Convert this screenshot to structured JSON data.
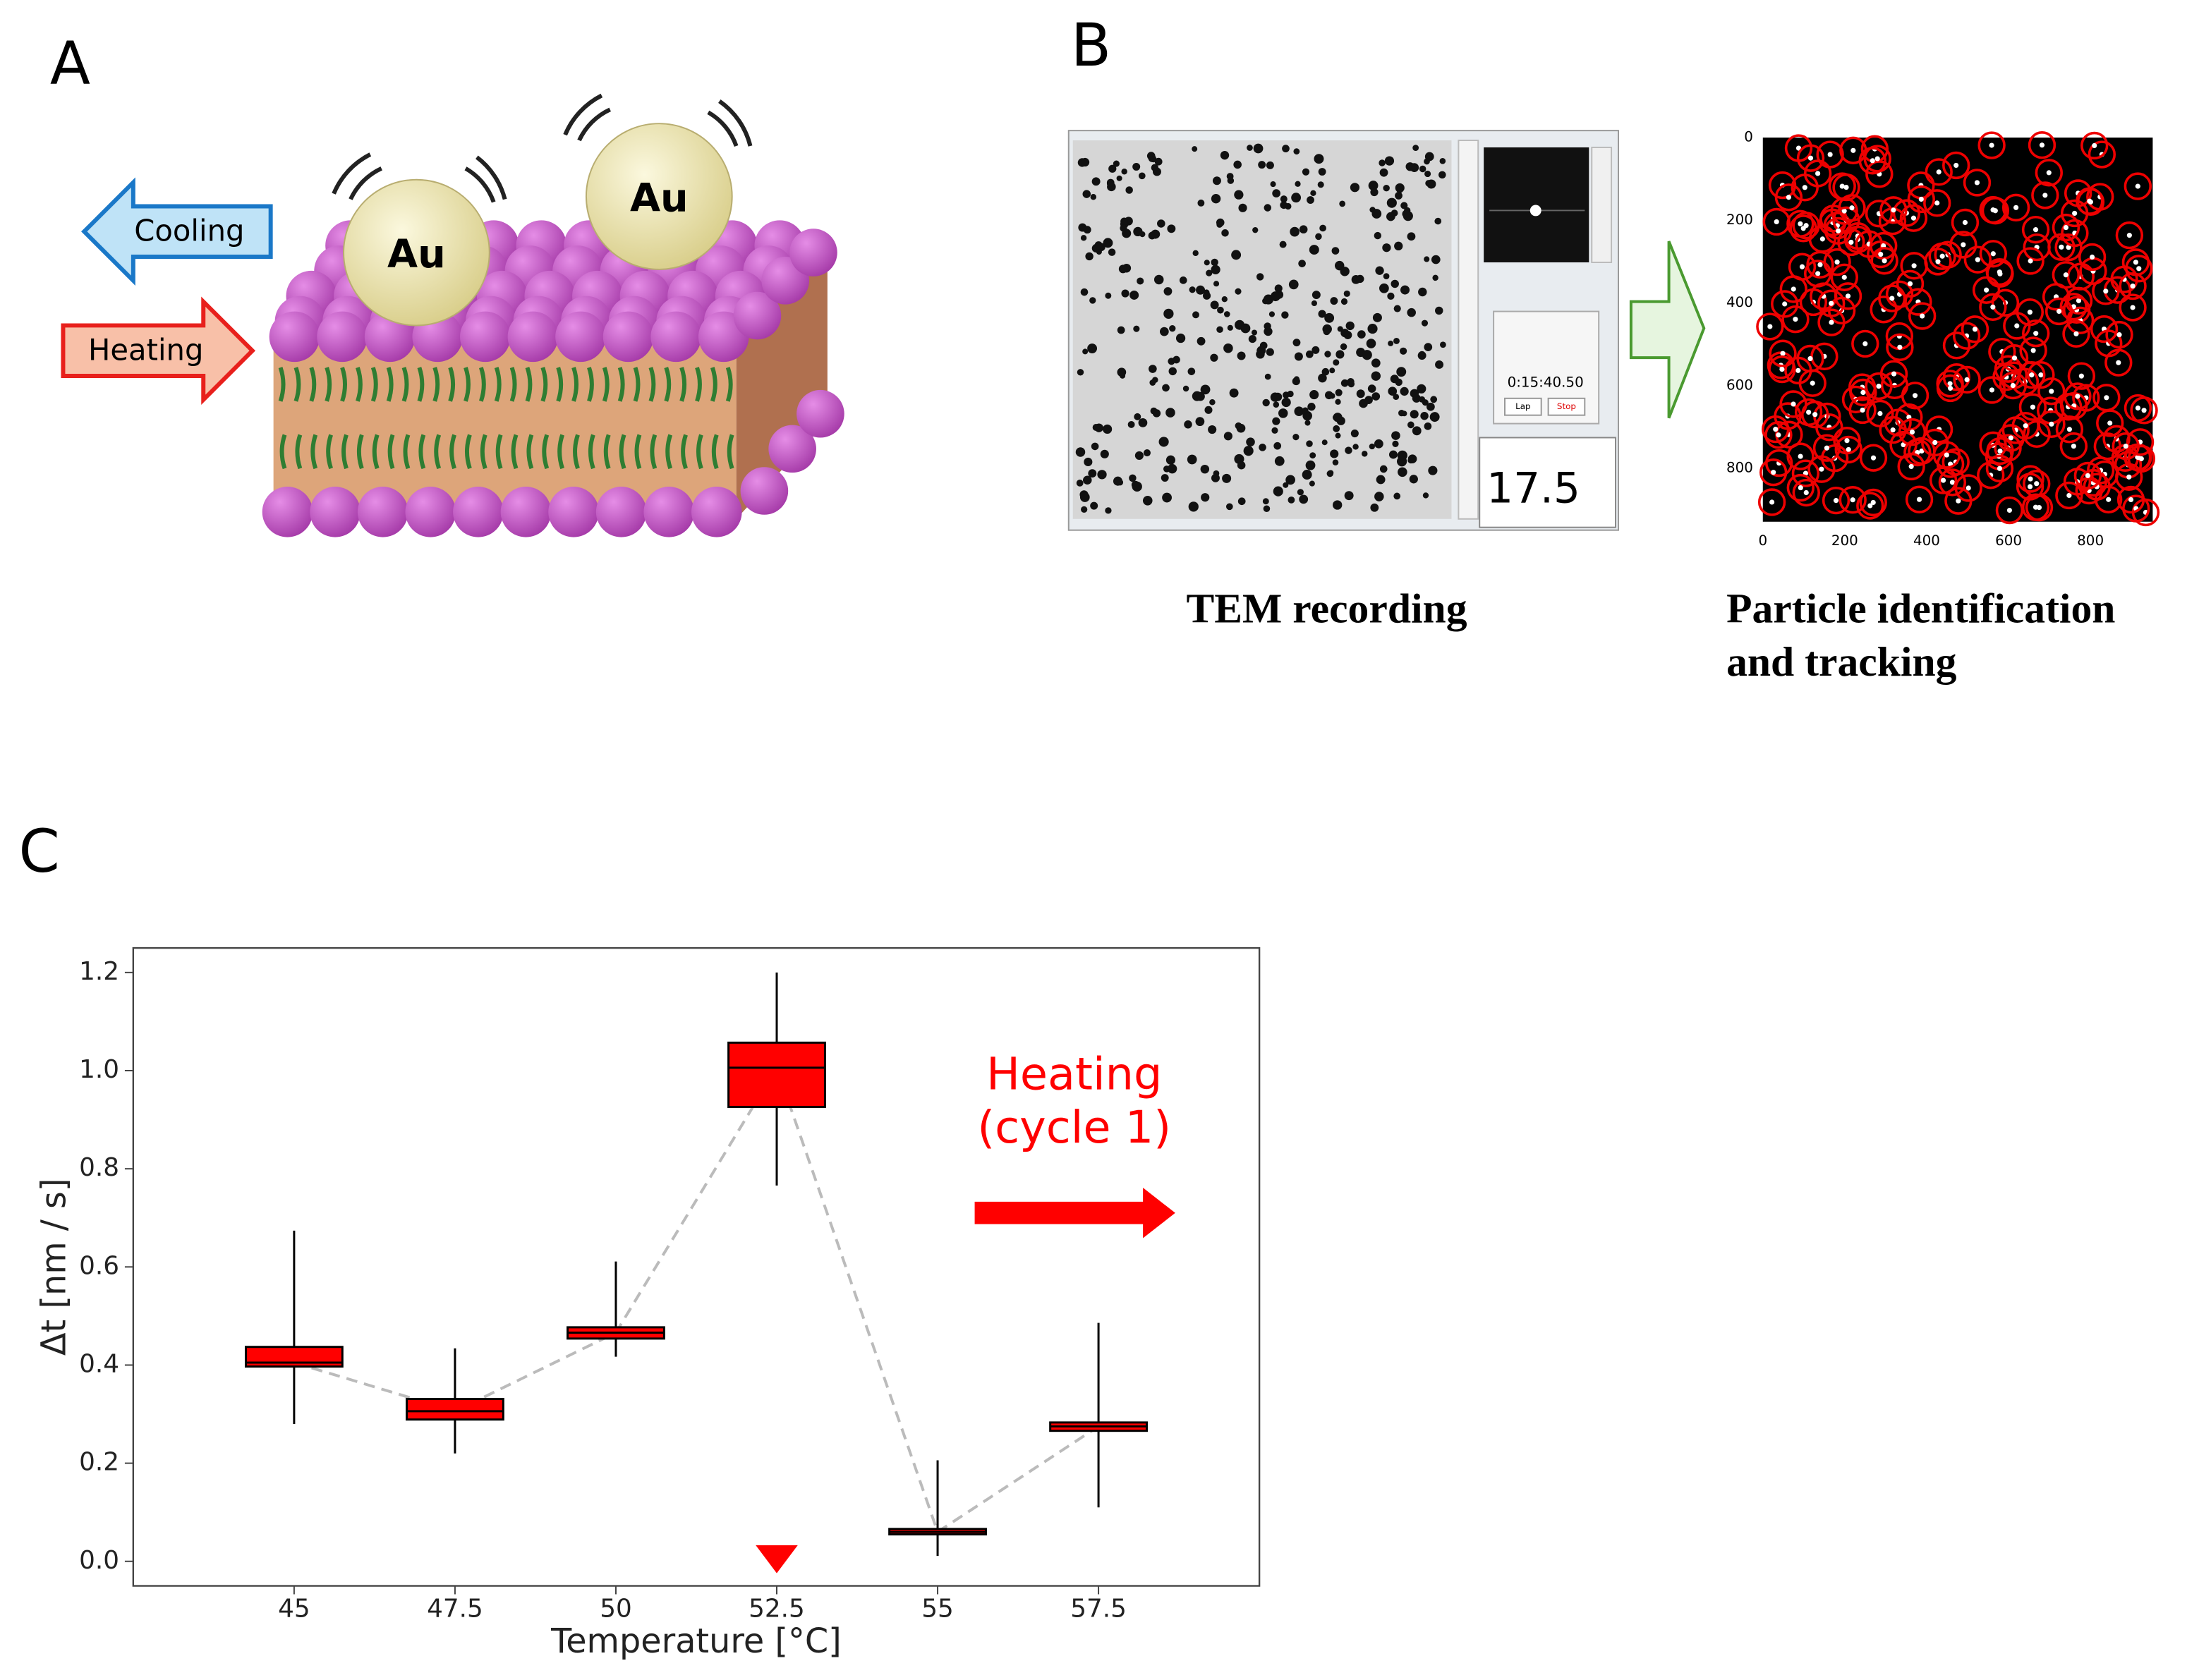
{
  "panel_a": {
    "label": "A",
    "cooling": "Cooling",
    "heating": "Heating",
    "particle_1": "Au",
    "particle_2": "Au"
  },
  "panel_b": {
    "label": "B",
    "recording_caption": "TEM recording",
    "tracking_caption_line_1": "Particle identification",
    "tracking_caption_line_2": "and tracking",
    "timer": "0:15:40.50",
    "lap_button": "Lap",
    "stop_button": "Stop",
    "temperature_display": "17.5",
    "tracking_plot": {
      "xticks": [
        0,
        200,
        400,
        600,
        800
      ],
      "yticks": [
        0,
        200,
        400,
        600,
        800
      ]
    }
  },
  "panel_c": {
    "label": "C"
  },
  "chart_data": {
    "type": "box",
    "xlabel": "Temperature [°C]",
    "ylabel": "Δt [nm / s]",
    "xlim": [
      42.5,
      60
    ],
    "xticks": [
      45,
      47.5,
      50,
      52.5,
      55,
      57.5
    ],
    "ylim": [
      -0.05,
      1.25
    ],
    "yticks": [
      {
        "value": 0,
        "label": "0.0"
      },
      {
        "value": 0.2,
        "label": "0.2"
      },
      {
        "value": 0.4,
        "label": "0.4"
      },
      {
        "value": 0.6,
        "label": "0.6"
      },
      {
        "value": 0.8,
        "label": "0.8"
      },
      {
        "value": 1.0,
        "label": "1.0"
      },
      {
        "value": 1.2,
        "label": "1.2"
      }
    ],
    "color": "#ff0000",
    "edge_color": "#000000",
    "trend_color": "#bbbbbb",
    "boxes": [
      {
        "x": 45,
        "whislo": 0.28,
        "q1": 0.397,
        "med": 0.405,
        "q3": 0.437,
        "whishi": 0.674
      },
      {
        "x": 47.5,
        "whislo": 0.22,
        "q1": 0.289,
        "med": 0.306,
        "q3": 0.331,
        "whishi": 0.434
      },
      {
        "x": 50,
        "whislo": 0.417,
        "q1": 0.454,
        "med": 0.466,
        "q3": 0.477,
        "whishi": 0.611
      },
      {
        "x": 52.5,
        "whislo": 0.766,
        "q1": 0.926,
        "med": 1.006,
        "q3": 1.057,
        "whishi": 1.2
      },
      {
        "x": 55,
        "whislo": 0.011,
        "q1": 0.055,
        "med": 0.06,
        "q3": 0.066,
        "whishi": 0.206
      },
      {
        "x": 57.5,
        "whislo": 0.11,
        "q1": 0.266,
        "med": 0.275,
        "q3": 0.283,
        "whishi": 0.486
      }
    ],
    "highlight_x": 52.5,
    "annotation": [
      "Heating",
      "(cycle 1)"
    ],
    "annotation_color": "#ff0000"
  }
}
